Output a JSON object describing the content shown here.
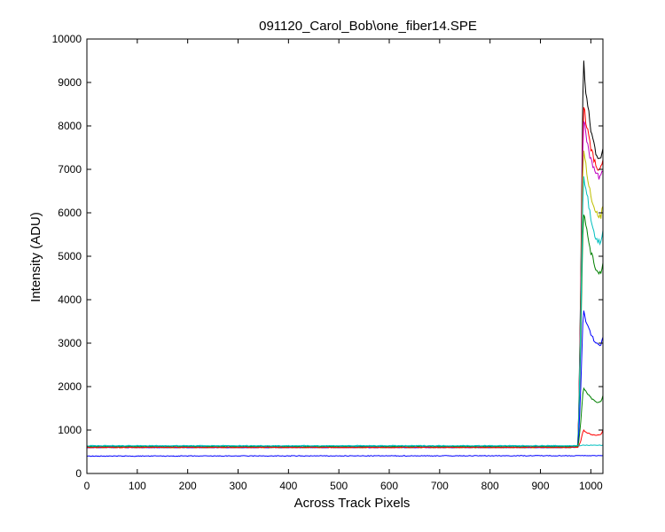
{
  "chart_data": {
    "type": "line",
    "title": "091120_Carol_Bob\\one_fiber14.SPE",
    "xlabel": "Across Track Pixels",
    "ylabel": "Intensity (ADU)",
    "xlim": [
      0,
      1024
    ],
    "ylim": [
      0,
      10000
    ],
    "x_ticks": [
      0,
      100,
      200,
      300,
      400,
      500,
      600,
      700,
      800,
      900,
      1000
    ],
    "y_ticks": [
      0,
      1000,
      2000,
      3000,
      4000,
      5000,
      6000,
      7000,
      8000,
      9000,
      10000
    ],
    "grid": false,
    "legend": "none",
    "series": [
      {
        "color": "#000000",
        "baseline": 610,
        "x": [
          0,
          960,
          975,
          980,
          985,
          990,
          1000,
          1010,
          1020,
          1024
        ],
        "y": [
          610,
          610,
          650,
          4500,
          9600,
          8800,
          7900,
          7400,
          7200,
          7500
        ]
      },
      {
        "color": "#ff0000",
        "baseline": 600,
        "x": [
          0,
          960,
          975,
          980,
          985,
          990,
          1000,
          1010,
          1020,
          1024
        ],
        "y": [
          600,
          600,
          640,
          4200,
          8600,
          8100,
          7500,
          7100,
          7000,
          7200
        ]
      },
      {
        "color": "#bf00bf",
        "baseline": 600,
        "x": [
          0,
          960,
          975,
          980,
          985,
          990,
          1000,
          1010,
          1020,
          1024
        ],
        "y": [
          600,
          600,
          640,
          4000,
          8300,
          7800,
          7200,
          6900,
          6800,
          7000
        ]
      },
      {
        "color": "#bfbf00",
        "baseline": 600,
        "x": [
          0,
          960,
          975,
          980,
          985,
          990,
          1000,
          1010,
          1020,
          1024
        ],
        "y": [
          600,
          600,
          630,
          3800,
          7600,
          7100,
          6400,
          6000,
          5900,
          6200
        ]
      },
      {
        "color": "#008000",
        "baseline": 600,
        "x": [
          0,
          960,
          975,
          980,
          985,
          990,
          1000,
          1010,
          1020,
          1024
        ],
        "y": [
          600,
          600,
          620,
          3100,
          6100,
          5700,
          5100,
          4700,
          4600,
          4900
        ]
      },
      {
        "color": "#00bfbf",
        "baseline": 630,
        "x": [
          0,
          960,
          975,
          980,
          985,
          990,
          1000,
          1010,
          1020,
          1024
        ],
        "y": [
          630,
          630,
          640,
          3600,
          6900,
          6600,
          5900,
          5400,
          5300,
          5600
        ]
      },
      {
        "color": "#0000ff",
        "baseline": 600,
        "x": [
          0,
          960,
          975,
          980,
          985,
          990,
          1000,
          1010,
          1020,
          1024
        ],
        "y": [
          600,
          600,
          610,
          2000,
          3800,
          3500,
          3200,
          3000,
          2950,
          3150
        ]
      },
      {
        "color": "#008000",
        "baseline": 610,
        "x": [
          0,
          960,
          975,
          980,
          985,
          990,
          1000,
          1010,
          1020,
          1024
        ],
        "y": [
          610,
          610,
          615,
          1200,
          2000,
          1900,
          1750,
          1650,
          1650,
          1800
        ]
      },
      {
        "color": "#ff0000",
        "baseline": 600,
        "x": [
          0,
          960,
          975,
          980,
          985,
          990,
          1000,
          1010,
          1020,
          1024
        ],
        "y": [
          600,
          600,
          605,
          750,
          1000,
          950,
          900,
          880,
          890,
          1000
        ]
      },
      {
        "color": "#00bfbf",
        "baseline": 640,
        "x": [
          0,
          960,
          975,
          980,
          985,
          990,
          1000,
          1010,
          1020,
          1024
        ],
        "y": [
          640,
          640,
          640,
          645,
          650,
          650,
          650,
          650,
          650,
          650
        ]
      },
      {
        "color": "#0000ff",
        "baseline": 400,
        "x": [
          0,
          1024
        ],
        "y": [
          400,
          410
        ]
      }
    ]
  }
}
